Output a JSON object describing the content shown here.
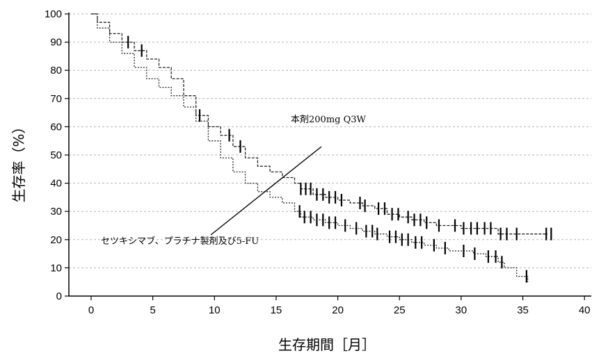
{
  "chart_data": {
    "type": "line",
    "title": "",
    "xlabel": "生存期間［月］",
    "ylabel": "生存率（%）",
    "xlim": [
      0,
      40
    ],
    "ylim": [
      0,
      100
    ],
    "xticks": [
      0,
      5,
      10,
      15,
      20,
      25,
      30,
      35,
      40
    ],
    "yticks": [
      0,
      10,
      20,
      30,
      40,
      50,
      60,
      70,
      80,
      90,
      100
    ],
    "grid": "horizontal dashed",
    "series": [
      {
        "name": "本剤200mg Q3W",
        "x": [
          0,
          0.5,
          1.5,
          2.5,
          3.5,
          4.5,
          5.5,
          6.5,
          7.5,
          8.5,
          9.5,
          10.5,
          11.5,
          12.5,
          13.5,
          14.5,
          15.5,
          16.5,
          17,
          18,
          19,
          20,
          21,
          22,
          23,
          24,
          25,
          26,
          27,
          28,
          30,
          32,
          33,
          35,
          37
        ],
        "y": [
          100,
          97,
          93,
          90,
          87,
          84,
          81,
          77,
          71,
          64,
          60,
          57,
          53,
          49,
          46,
          44,
          42,
          40,
          38,
          36,
          35,
          34,
          33,
          32,
          31,
          29,
          28,
          27,
          26,
          25,
          24,
          24,
          22,
          22,
          22
        ],
        "censor_x": [
          3,
          4.1,
          8.8,
          11.2,
          12.1,
          17,
          17.4,
          17.8,
          18.3,
          18.8,
          19.3,
          19.8,
          20.3,
          21.8,
          22.2,
          23.3,
          23.8,
          24.4,
          24.9,
          25.7,
          26.2,
          26.7,
          27.2,
          28.2,
          29.5,
          30.2,
          30.8,
          31.3,
          31.9,
          32.4,
          33.2,
          33.7,
          34.5,
          36.9,
          37.3
        ]
      },
      {
        "name": "セツキシマブ、プラチナ製剤及び5-FU",
        "x": [
          0,
          0.5,
          1.5,
          2.5,
          3.5,
          4.5,
          5.5,
          6.5,
          7.5,
          8.5,
          9.5,
          10.5,
          11.5,
          12.5,
          13.5,
          14.5,
          15.5,
          16.5,
          17,
          18,
          19,
          20,
          21,
          22,
          23,
          24,
          25,
          26,
          27,
          28,
          29,
          30,
          31,
          32,
          33,
          33.5,
          34.5,
          35.4
        ],
        "y": [
          100,
          95,
          90,
          86,
          81,
          77,
          74,
          71,
          67,
          62,
          55,
          49,
          44,
          40,
          37,
          35,
          33,
          30,
          28,
          27,
          26,
          25,
          24,
          23,
          22,
          21,
          20,
          19,
          18,
          17,
          16,
          16,
          15,
          14,
          12,
          10,
          7,
          5
        ],
        "censor_x": [
          16.9,
          17.3,
          17.8,
          18.3,
          18.8,
          19.3,
          19.8,
          20.6,
          21.5,
          22.3,
          22.8,
          23.2,
          24.2,
          24.7,
          25.2,
          25.7,
          26.3,
          26.8,
          27.8,
          28.7,
          30.2,
          31.1,
          32.2,
          32.8,
          33.3,
          35.3
        ]
      }
    ],
    "annotations": [
      {
        "text": "本剤200mg Q3W",
        "target_series": 0
      },
      {
        "text": "セツキシマブ、プラチナ製剤及び5-FU",
        "target_series": 1
      }
    ]
  }
}
